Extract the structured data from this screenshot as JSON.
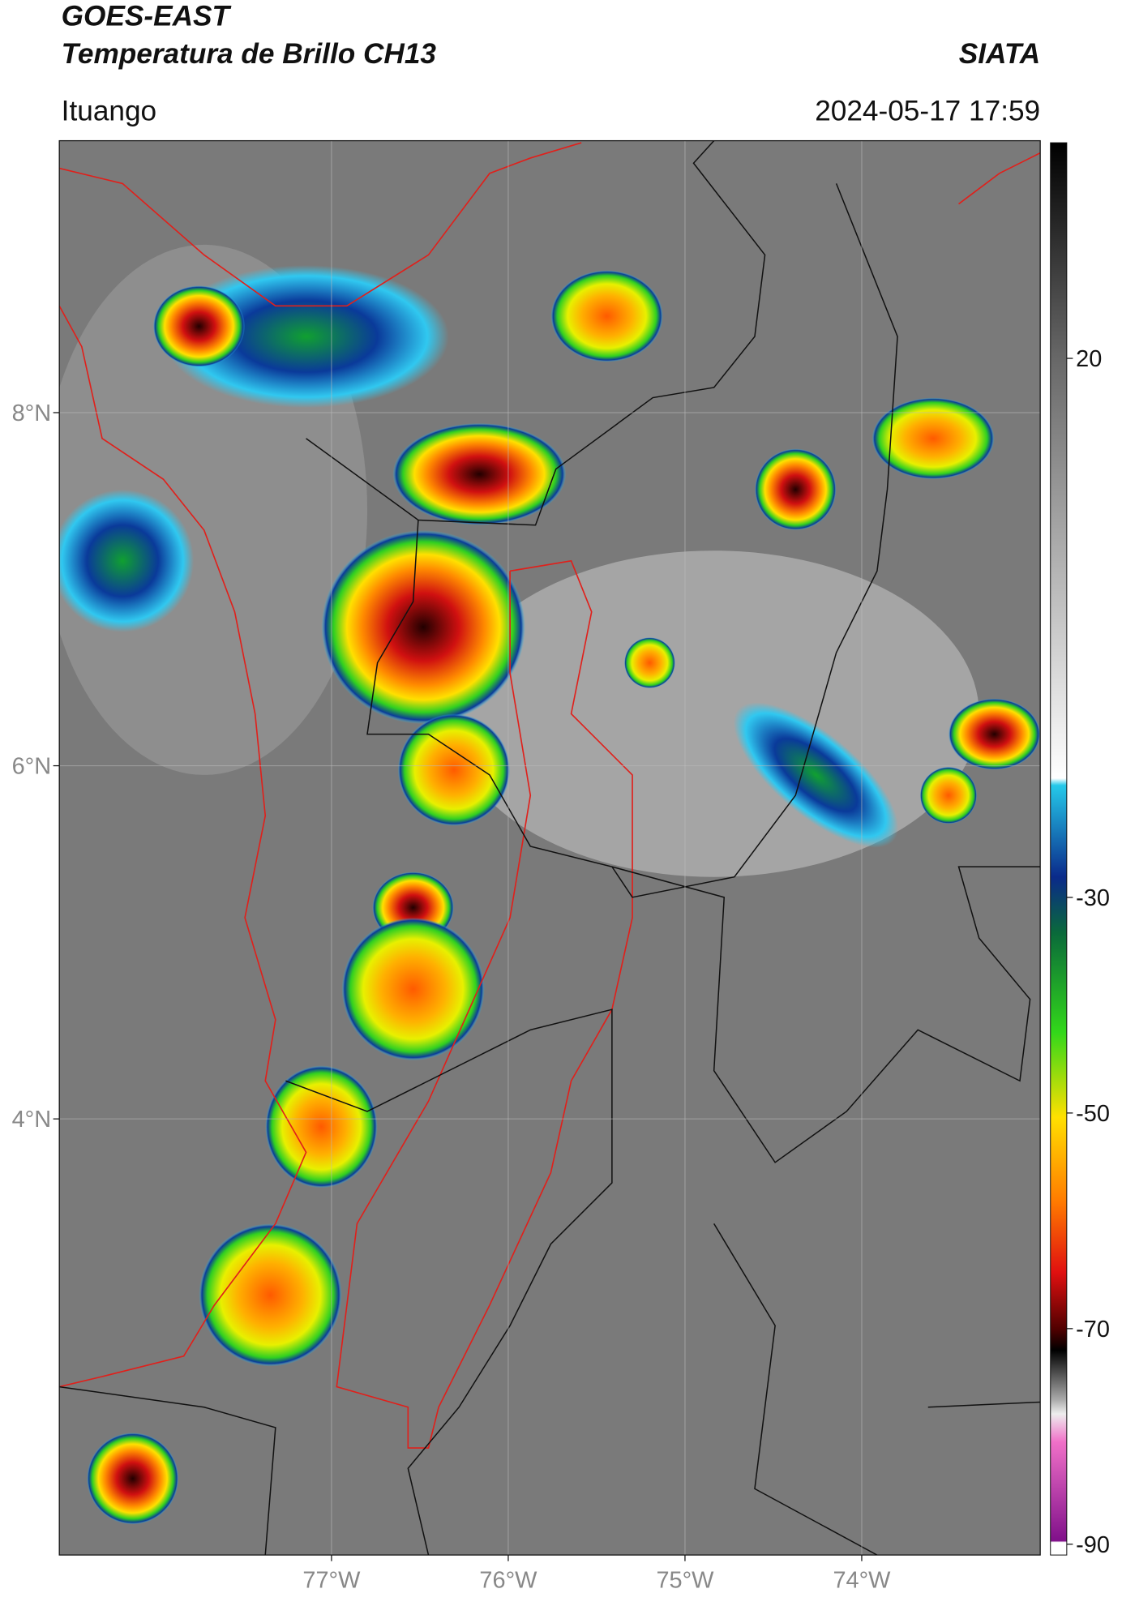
{
  "header": {
    "title": "GOES-EAST",
    "subtitle": "Temperatura de Brillo CH13",
    "source": "SIATA",
    "location": "Ituango",
    "datetime": "2024-05-17 17:59"
  },
  "map": {
    "xlim": [
      -78.54,
      -72.99
    ],
    "ylim": [
      1.53,
      9.54
    ],
    "lat_ticks": [
      {
        "value": 8,
        "label": "8°N"
      },
      {
        "value": 6,
        "label": "6°N"
      },
      {
        "value": 4,
        "label": "4°N"
      }
    ],
    "lon_ticks": [
      {
        "value": -77,
        "label": "77°W"
      },
      {
        "value": -76,
        "label": "76°W"
      },
      {
        "value": -75,
        "label": "75°W"
      },
      {
        "value": -74,
        "label": "74°W"
      }
    ],
    "grid": true
  },
  "colorbar": {
    "lim": [
      -91,
      40
    ],
    "ticks": [
      20,
      -30,
      -50,
      -70,
      -90
    ]
  }
}
